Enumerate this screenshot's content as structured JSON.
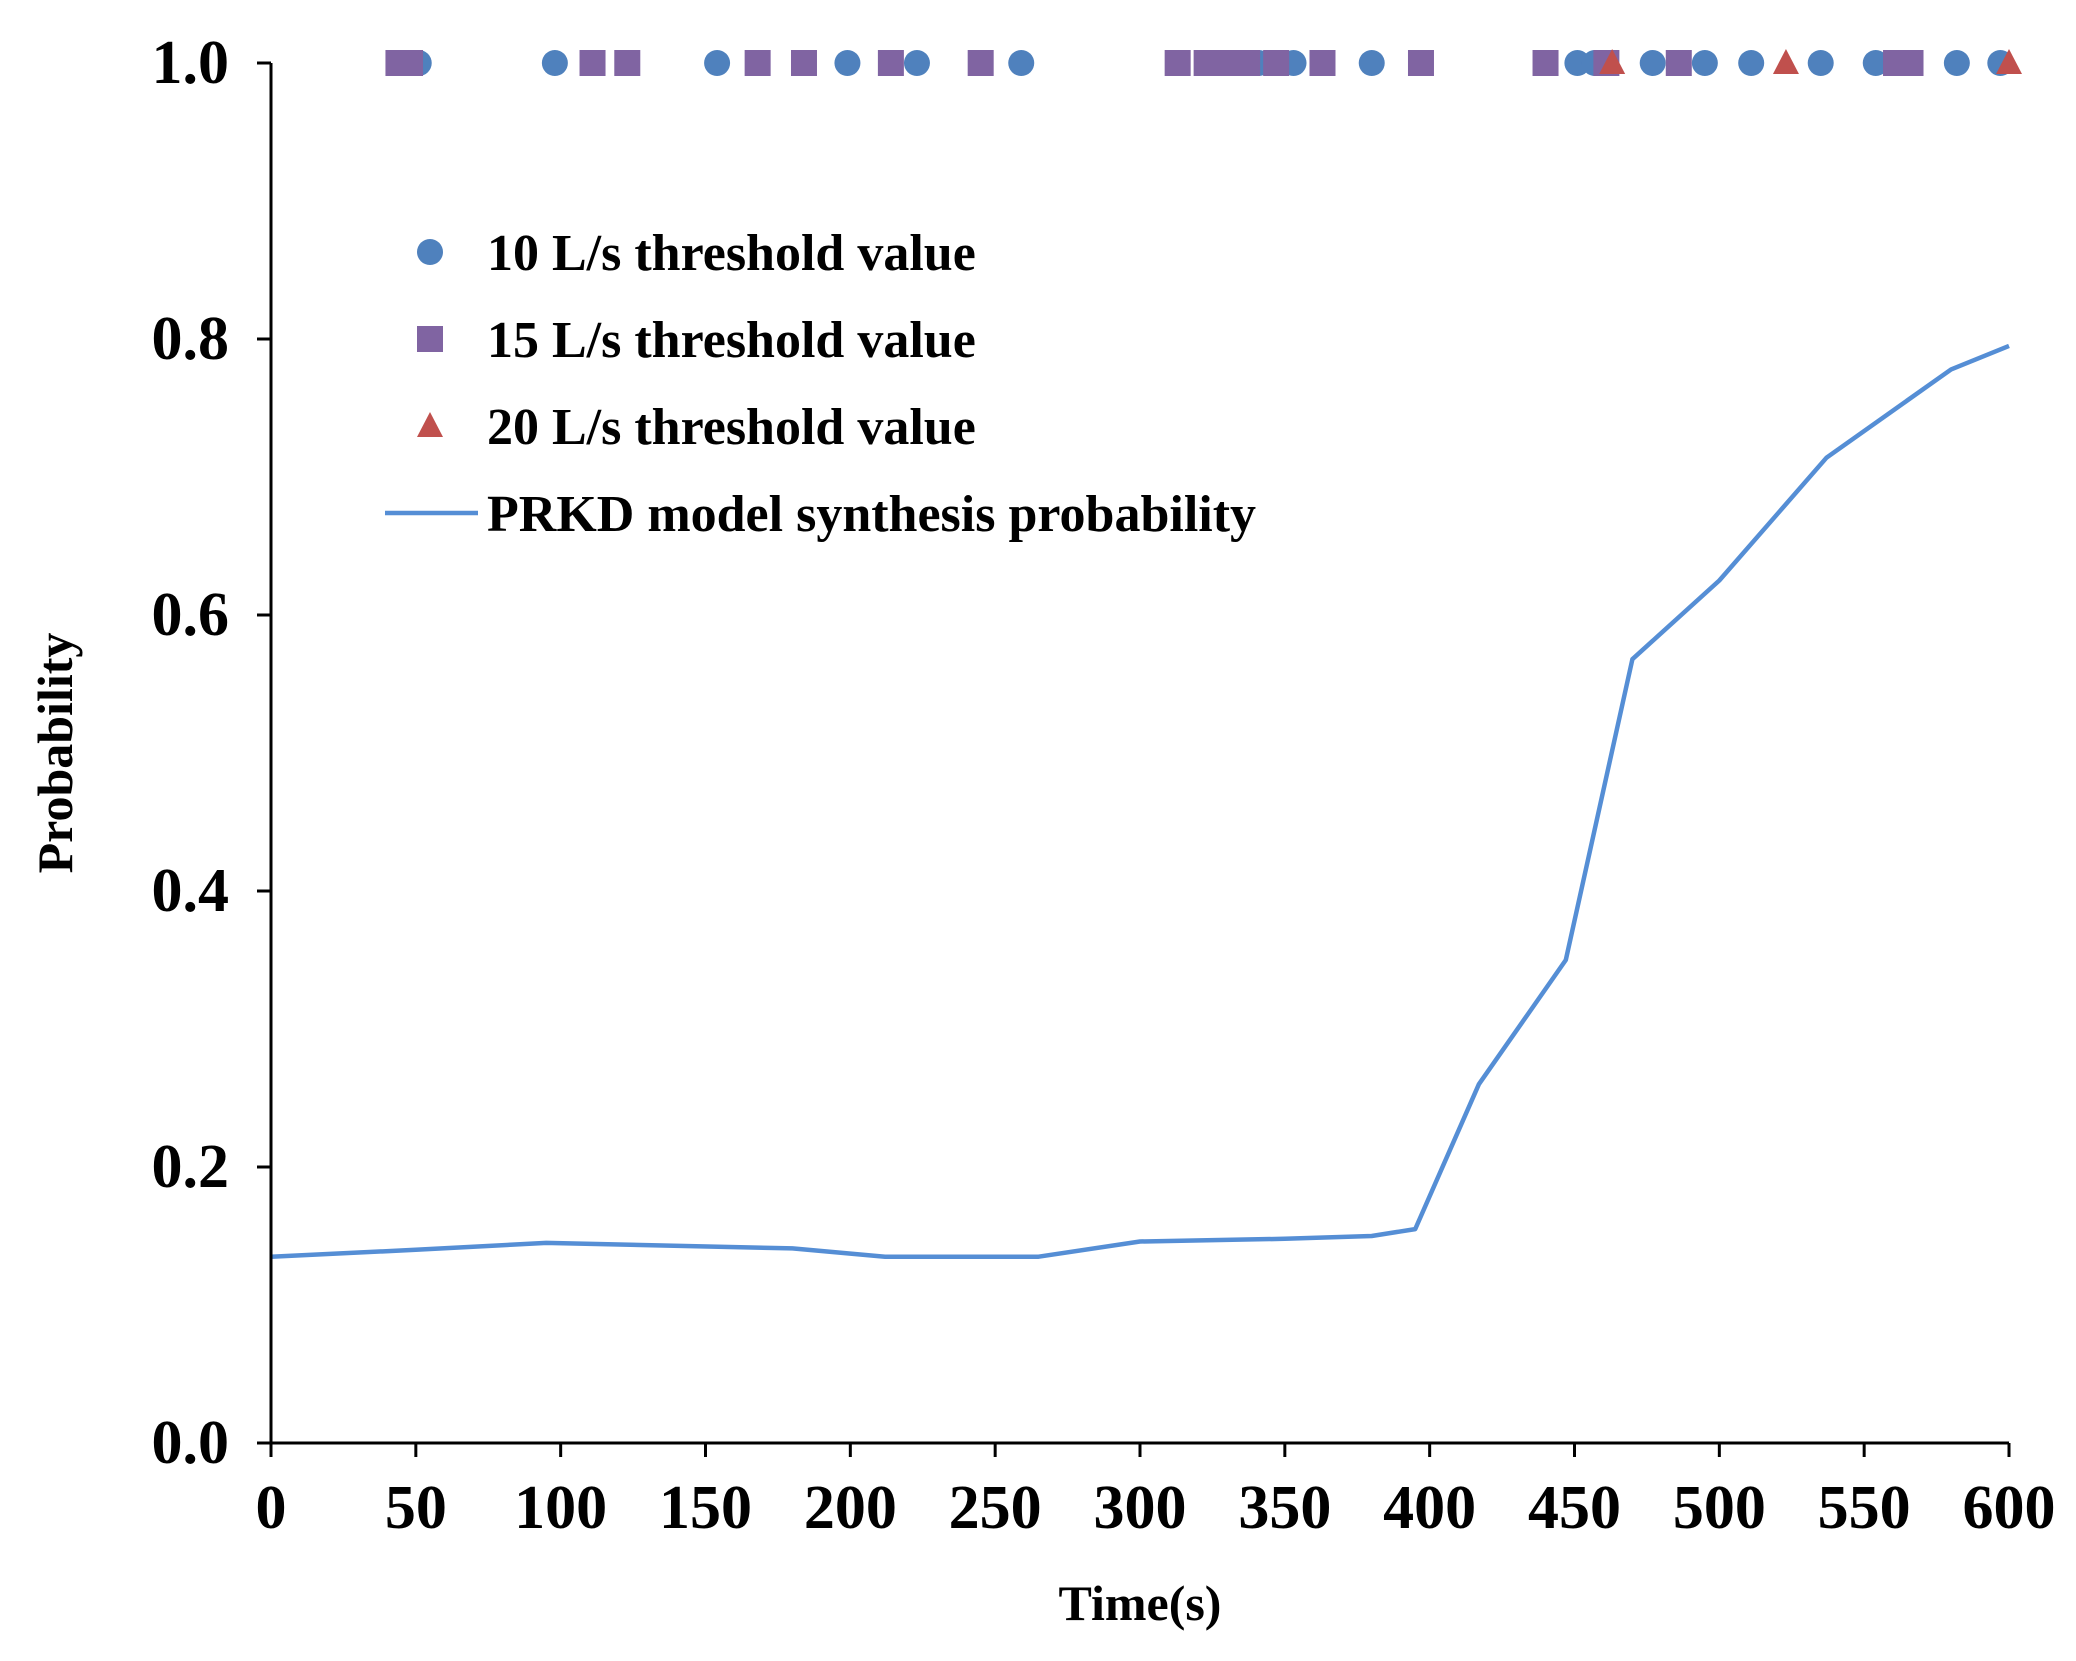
{
  "chart_data": {
    "type": "scatter+line",
    "title": "",
    "xlabel": "Time(s)",
    "ylabel": "Probability",
    "xlim": [
      0,
      600
    ],
    "ylim": [
      0,
      1.0
    ],
    "x_ticks": [
      0,
      50,
      100,
      150,
      200,
      250,
      300,
      350,
      400,
      450,
      500,
      550,
      600
    ],
    "x_tick_labels": [
      "0",
      "50",
      "100",
      "150",
      "200",
      "250",
      "300",
      "350",
      "400",
      "450",
      "500",
      "550",
      "600"
    ],
    "y_ticks": [
      0.0,
      0.2,
      0.4,
      0.6,
      0.8,
      1.0
    ],
    "y_tick_labels": [
      "0.0",
      "0.2",
      "0.4",
      "0.6",
      "0.8",
      "1.0"
    ],
    "grid": false,
    "legend_position": "upper-left",
    "series": [
      {
        "name": "10 L/s threshold value",
        "type": "scatter",
        "marker": "circle",
        "color": "#4F81BD",
        "points": [
          {
            "x": 51,
            "y": 1.0
          },
          {
            "x": 98,
            "y": 1.0
          },
          {
            "x": 154,
            "y": 1.0
          },
          {
            "x": 199,
            "y": 1.0
          },
          {
            "x": 223,
            "y": 1.0
          },
          {
            "x": 259,
            "y": 1.0
          },
          {
            "x": 341,
            "y": 1.0
          },
          {
            "x": 353,
            "y": 1.0
          },
          {
            "x": 380,
            "y": 1.0
          },
          {
            "x": 451,
            "y": 1.0
          },
          {
            "x": 457,
            "y": 1.0
          },
          {
            "x": 477,
            "y": 1.0
          },
          {
            "x": 495,
            "y": 1.0
          },
          {
            "x": 511,
            "y": 1.0
          },
          {
            "x": 535,
            "y": 1.0
          },
          {
            "x": 554,
            "y": 1.0
          },
          {
            "x": 565,
            "y": 1.0
          },
          {
            "x": 582,
            "y": 1.0
          },
          {
            "x": 597,
            "y": 1.0
          }
        ]
      },
      {
        "name": "15 L/s threshold value",
        "type": "scatter",
        "marker": "square",
        "color": "#8064A2",
        "points": [
          {
            "x": 44,
            "y": 1.0
          },
          {
            "x": 48,
            "y": 1.0
          },
          {
            "x": 111,
            "y": 1.0
          },
          {
            "x": 123,
            "y": 1.0
          },
          {
            "x": 168,
            "y": 1.0
          },
          {
            "x": 184,
            "y": 1.0
          },
          {
            "x": 214,
            "y": 1.0
          },
          {
            "x": 245,
            "y": 1.0
          },
          {
            "x": 313,
            "y": 1.0
          },
          {
            "x": 323,
            "y": 1.0
          },
          {
            "x": 327,
            "y": 1.0
          },
          {
            "x": 332,
            "y": 1.0
          },
          {
            "x": 337,
            "y": 1.0
          },
          {
            "x": 347,
            "y": 1.0
          },
          {
            "x": 363,
            "y": 1.0
          },
          {
            "x": 397,
            "y": 1.0
          },
          {
            "x": 440,
            "y": 1.0
          },
          {
            "x": 461,
            "y": 1.0
          },
          {
            "x": 486,
            "y": 1.0
          },
          {
            "x": 561,
            "y": 1.0
          },
          {
            "x": 566,
            "y": 1.0
          }
        ]
      },
      {
        "name": "20 L/s threshold value",
        "type": "scatter",
        "marker": "triangle",
        "color": "#C0504D",
        "points": [
          {
            "x": 463,
            "y": 1.0
          },
          {
            "x": 523,
            "y": 1.0
          },
          {
            "x": 600,
            "y": 1.0
          }
        ]
      },
      {
        "name": "PRKD model synthesis probability",
        "type": "line",
        "color": "#558ED5",
        "points": [
          {
            "x": 0,
            "y": 0.135
          },
          {
            "x": 50,
            "y": 0.14
          },
          {
            "x": 95,
            "y": 0.145
          },
          {
            "x": 180,
            "y": 0.141
          },
          {
            "x": 212,
            "y": 0.135
          },
          {
            "x": 265,
            "y": 0.135
          },
          {
            "x": 300,
            "y": 0.146
          },
          {
            "x": 350,
            "y": 0.148
          },
          {
            "x": 380,
            "y": 0.15
          },
          {
            "x": 395,
            "y": 0.155
          },
          {
            "x": 417,
            "y": 0.26
          },
          {
            "x": 447,
            "y": 0.35
          },
          {
            "x": 470,
            "y": 0.568
          },
          {
            "x": 500,
            "y": 0.625
          },
          {
            "x": 537,
            "y": 0.714
          },
          {
            "x": 580,
            "y": 0.778
          },
          {
            "x": 600,
            "y": 0.795
          }
        ]
      }
    ]
  }
}
